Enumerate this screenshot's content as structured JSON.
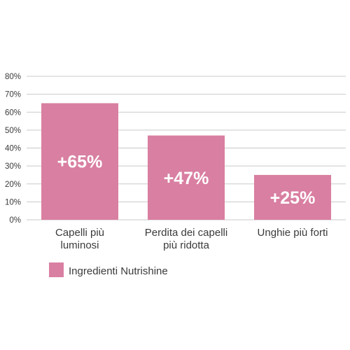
{
  "chart_data": {
    "type": "bar",
    "categories": [
      [
        "Capelli più",
        "luminosi"
      ],
      [
        "Perdita dei capelli",
        "più ridotta"
      ],
      [
        "Unghie più forti"
      ]
    ],
    "series": [
      {
        "name": "Ingredienti Nutrishine",
        "values": [
          65,
          47,
          25
        ],
        "color": "#d97fa1"
      }
    ],
    "data_labels": [
      "+65%",
      "+47%",
      "+25%"
    ],
    "y_ticks": [
      "0%",
      "10%",
      "20%",
      "30%",
      "40%",
      "50%",
      "60%",
      "70%",
      "80%"
    ],
    "ylim": [
      0,
      80
    ],
    "grid": true,
    "gridline_color": "#c9c9c9",
    "legend_position": "bottom-left"
  }
}
